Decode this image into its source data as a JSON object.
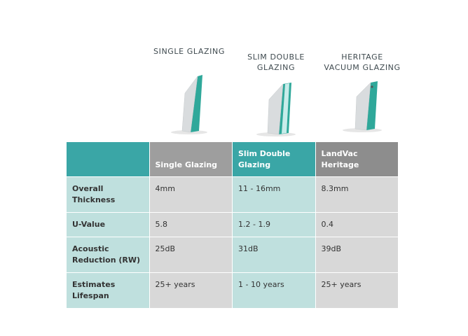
{
  "products": [
    {
      "title": "SINGLE GLAZING",
      "icon": "single-pane-glass-icon"
    },
    {
      "title": "SLIM DOUBLE\nGLAZING",
      "icon": "double-pane-glass-icon"
    },
    {
      "title": "HERITAGE\nVACUUM GLAZING",
      "icon": "vacuum-glass-icon"
    }
  ],
  "table": {
    "headers": [
      "",
      "Single Glazing",
      "Slim Double Glazing",
      "LandVac Heritage"
    ],
    "rows": [
      {
        "label": "Overall Thickness",
        "values": [
          "4mm",
          "11 - 16mm",
          "8.3mm"
        ]
      },
      {
        "label": "U-Value",
        "values": [
          "5.8",
          "1.2 - 1.9",
          "0.4"
        ]
      },
      {
        "label": "Acoustic Reduction (RW)",
        "values": [
          "25dB",
          "31dB",
          "39dB"
        ]
      },
      {
        "label": "Estimates Lifespan",
        "values": [
          "25+ years",
          "1 - 10 years",
          "25+ years"
        ]
      }
    ]
  },
  "colors": {
    "teal": "#3aa6a6",
    "light_teal": "#bfe0de",
    "grey_header": "#9e9e9e",
    "grey_cell": "#d8d8d8"
  }
}
